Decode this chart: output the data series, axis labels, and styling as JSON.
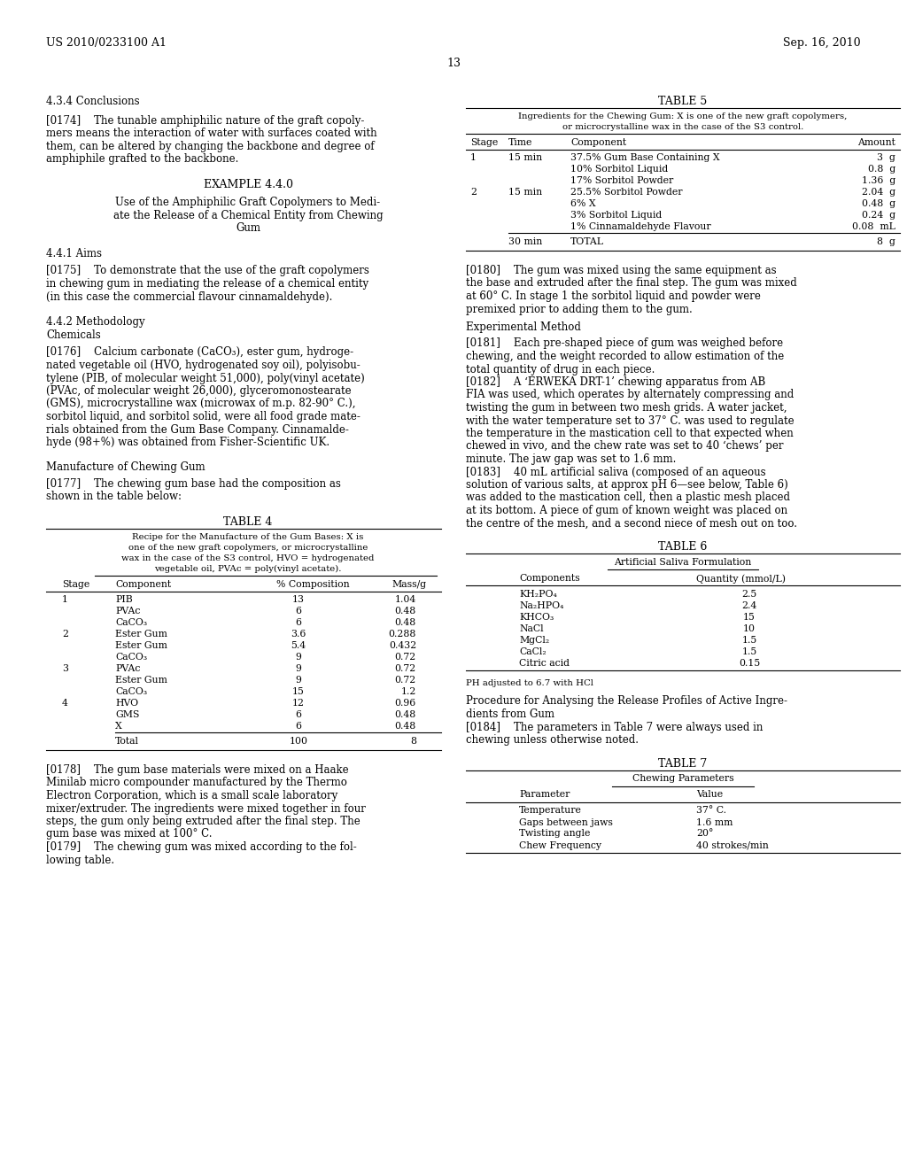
{
  "bg_color": "#ffffff",
  "text_color": "#000000",
  "header_left": "US 2010/0233100 A1",
  "header_right": "Sep. 16, 2010",
  "page_number": "13",
  "section_conclusions": "4.3.4 Conclusions",
  "example_heading": "EXAMPLE 4.4.0",
  "section_aims": "4.4.1 Aims",
  "section_methodology": "4.4.2 Methodology",
  "section_chemicals": "Chemicals",
  "section_manufacture": "Manufacture of Chewing Gum",
  "table4_title": "TABLE 4",
  "table4_caption_lines": [
    "Recipe for the Manufacture of the Gum Bases: X is",
    "one of the new graft copolymers, or microcrystalline",
    "wax in the case of the S3 control, HVO = hydrogenated",
    "vegetable oil, PVAc = poly(vinyl acetate)."
  ],
  "table4_headers": [
    "Stage",
    "Component",
    "% Composition",
    "Mass/g"
  ],
  "table4_rows": [
    [
      "1",
      "PIB",
      "13",
      "1.04"
    ],
    [
      "",
      "PVAc",
      "6",
      "0.48"
    ],
    [
      "",
      "CaCO₃",
      "6",
      "0.48"
    ],
    [
      "2",
      "Ester Gum",
      "3.6",
      "0.288"
    ],
    [
      "",
      "Ester Gum",
      "5.4",
      "0.432"
    ],
    [
      "",
      "CaCO₃",
      "9",
      "0.72"
    ],
    [
      "3",
      "PVAc",
      "9",
      "0.72"
    ],
    [
      "",
      "Ester Gum",
      "9",
      "0.72"
    ],
    [
      "",
      "CaCO₃",
      "15",
      "1.2"
    ],
    [
      "4",
      "HVO",
      "12",
      "0.96"
    ],
    [
      "",
      "GMS",
      "6",
      "0.48"
    ],
    [
      "",
      "X",
      "6",
      "0.48"
    ],
    [
      "",
      "Total",
      "100",
      "8"
    ]
  ],
  "table5_title": "TABLE 5",
  "table5_caption_lines": [
    "Ingredients for the Chewing Gum: X is one of the new graft copolymers,",
    "or microcrystalline wax in the case of the S3 control."
  ],
  "table5_headers": [
    "Stage",
    "Time",
    "Component",
    "Amount"
  ],
  "table5_rows": [
    [
      "1",
      "15 min",
      "37.5% Gum Base Containing X",
      "3  g"
    ],
    [
      "",
      "",
      "10% Sorbitol Liquid",
      "0.8  g"
    ],
    [
      "",
      "",
      "17% Sorbitol Powder",
      "1.36  g"
    ],
    [
      "2",
      "15 min",
      "25.5% Sorbitol Powder",
      "2.04  g"
    ],
    [
      "",
      "",
      "6% X",
      "0.48  g"
    ],
    [
      "",
      "",
      "3% Sorbitol Liquid",
      "0.24  g"
    ],
    [
      "",
      "",
      "1% Cinnamaldehyde Flavour",
      "0.08  mL"
    ],
    [
      "",
      "30 min",
      "TOTAL",
      "8  g"
    ]
  ],
  "table6_title": "TABLE 6",
  "table6_subtitle": "Artificial Saliva Formulation",
  "table6_headers": [
    "Components",
    "Quantity (mmol/L)"
  ],
  "table6_rows": [
    [
      "KH₂PO₄",
      "2.5"
    ],
    [
      "Na₂HPO₄",
      "2.4"
    ],
    [
      "KHCO₃",
      "15"
    ],
    [
      "NaCl",
      "10"
    ],
    [
      "MgCl₂",
      "1.5"
    ],
    [
      "CaCl₂",
      "1.5"
    ],
    [
      "Citric acid",
      "0.15"
    ]
  ],
  "table6_footnote": "PH adjusted to 6.7 with HCl",
  "table7_title": "TABLE 7",
  "table7_subtitle": "Chewing Parameters",
  "table7_headers": [
    "Parameter",
    "Value"
  ],
  "table7_rows": [
    [
      "Temperature",
      "37° C."
    ],
    [
      "Gaps between jaws",
      "1.6 mm"
    ],
    [
      "Twisting angle",
      "20°"
    ],
    [
      "Chew Frequency",
      "40 strokes/min"
    ]
  ],
  "left_col": {
    "para_174_lines": [
      "[0174]    The tunable amphiphilic nature of the graft copoly-",
      "mers means the interaction of water with surfaces coated with",
      "them, can be altered by changing the backbone and degree of",
      "amphiphile grafted to the backbone."
    ],
    "example_sub_lines": [
      "Use of the Amphiphilic Graft Copolymers to Medi-",
      "ate the Release of a Chemical Entity from Chewing",
      "Gum"
    ],
    "para_175_lines": [
      "[0175]    To demonstrate that the use of the graft copolymers",
      "in chewing gum in mediating the release of a chemical entity",
      "(in this case the commercial flavour cinnamaldehyde)."
    ],
    "para_176_lines": [
      "[0176]    Calcium carbonate (CaCO₃), ester gum, hydroge-",
      "nated vegetable oil (HVO, hydrogenated soy oil), polyisobu-",
      "tylene (PIB, of molecular weight 51,000), poly(vinyl acetate)",
      "(PVAc, of molecular weight 26,000), glyceromonostearate",
      "(GMS), microcrystalline wax (microwax of m.p. 82-90° C.),",
      "sorbitol liquid, and sorbitol solid, were all food grade mate-",
      "rials obtained from the Gum Base Company. Cinnamalde-",
      "hyde (98+%) was obtained from Fisher-Scientific UK."
    ],
    "para_177_lines": [
      "[0177]    The chewing gum base had the composition as",
      "shown in the table below:"
    ],
    "para_178_lines": [
      "[0178]    The gum base materials were mixed on a Haake",
      "Minilab micro compounder manufactured by the Thermo",
      "Electron Corporation, which is a small scale laboratory",
      "mixer/extruder. The ingredients were mixed together in four",
      "steps, the gum only being extruded after the final step. The",
      "gum base was mixed at 100° C."
    ],
    "para_179_lines": [
      "[0179]    The chewing gum was mixed according to the fol-",
      "lowing table."
    ]
  },
  "right_col": {
    "para_180_lines": [
      "[0180]    The gum was mixed using the same equipment as",
      "the base and extruded after the final step. The gum was mixed",
      "at 60° C. In stage 1 the sorbitol liquid and powder were",
      "premixed prior to adding them to the gum."
    ],
    "section_experimental": "Experimental Method",
    "para_181_lines": [
      "[0181]    Each pre-shaped piece of gum was weighed before",
      "chewing, and the weight recorded to allow estimation of the",
      "total quantity of drug in each piece."
    ],
    "para_182_lines": [
      "[0182]    A ‘ERWEKA DRT-1’ chewing apparatus from AB",
      "FIA was used, which operates by alternately compressing and",
      "twisting the gum in between two mesh grids. A water jacket,",
      "with the water temperature set to 37° C. was used to regulate",
      "the temperature in the mastication cell to that expected when",
      "chewed in vivo, and the chew rate was set to 40 ‘chews’ per",
      "minute. The jaw gap was set to 1.6 mm."
    ],
    "para_183_lines": [
      "[0183]    40 mL artificial saliva (composed of an aqueous",
      "solution of various salts, at approx pH 6—see below, Table 6)",
      "was added to the mastication cell, then a plastic mesh placed",
      "at its bottom. A piece of gum of known weight was placed on",
      "the centre of the mesh, and a second niece of mesh out on too."
    ],
    "section_procedure_lines": [
      "Procedure for Analysing the Release Profiles of Active Ingre-",
      "dients from Gum"
    ],
    "para_184_lines": [
      "[0184]    The parameters in Table 7 were always used in",
      "chewing unless otherwise noted."
    ]
  }
}
